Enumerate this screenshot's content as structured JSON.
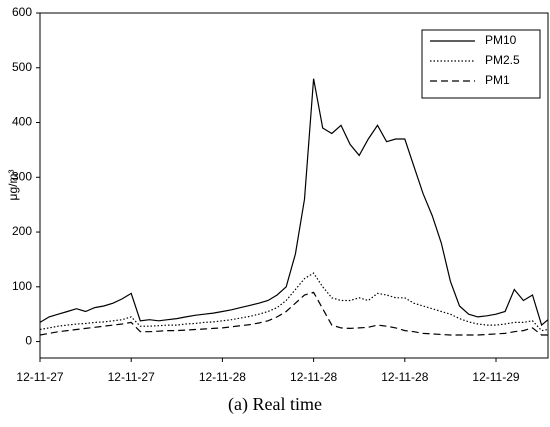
{
  "chart_data": {
    "type": "line",
    "caption": "(a) Real time",
    "ylabel": "μg/m³",
    "x": [
      0,
      0.1,
      0.2,
      0.3,
      0.4,
      0.5,
      0.6,
      0.7,
      0.8,
      0.9,
      1.0,
      1.1,
      1.2,
      1.3,
      1.4,
      1.5,
      1.6,
      1.7,
      1.8,
      1.9,
      2.0,
      2.1,
      2.2,
      2.3,
      2.4,
      2.5,
      2.6,
      2.7,
      2.8,
      2.9,
      3.0,
      3.1,
      3.2,
      3.3,
      3.4,
      3.5,
      3.6,
      3.7,
      3.8,
      3.9,
      4.0,
      4.1,
      4.2,
      4.3,
      4.4,
      4.5,
      4.6,
      4.7,
      4.8,
      4.9,
      5.0,
      5.1,
      5.2,
      5.3,
      5.4,
      5.5,
      5.57
    ],
    "series": [
      {
        "name": "PM10",
        "color": "#000000",
        "line_style": "solid",
        "values": [
          35,
          45,
          50,
          55,
          60,
          55,
          62,
          65,
          70,
          78,
          88,
          38,
          40,
          38,
          40,
          42,
          45,
          48,
          50,
          52,
          55,
          58,
          62,
          66,
          70,
          75,
          85,
          100,
          160,
          260,
          480,
          390,
          380,
          395,
          360,
          340,
          370,
          395,
          365,
          370,
          370,
          320,
          270,
          230,
          180,
          110,
          65,
          50,
          45,
          47,
          50,
          55,
          95,
          75,
          85,
          30,
          40
        ]
      },
      {
        "name": "PM2.5",
        "color": "#000000",
        "line_style": "dotted",
        "values": [
          22,
          25,
          28,
          30,
          32,
          33,
          35,
          36,
          38,
          40,
          45,
          28,
          28,
          29,
          30,
          30,
          32,
          33,
          35,
          36,
          38,
          40,
          43,
          46,
          50,
          55,
          62,
          75,
          95,
          115,
          125,
          100,
          80,
          75,
          75,
          80,
          75,
          88,
          85,
          80,
          80,
          70,
          65,
          60,
          55,
          50,
          42,
          36,
          32,
          30,
          30,
          32,
          35,
          35,
          38,
          20,
          22
        ]
      },
      {
        "name": "PM1",
        "color": "#000000",
        "line_style": "dashed",
        "values": [
          12,
          15,
          18,
          20,
          22,
          24,
          26,
          28,
          30,
          32,
          35,
          18,
          18,
          19,
          20,
          20,
          21,
          22,
          23,
          24,
          25,
          27,
          29,
          31,
          34,
          38,
          45,
          55,
          70,
          85,
          90,
          60,
          30,
          25,
          24,
          25,
          26,
          30,
          28,
          25,
          20,
          18,
          15,
          14,
          13,
          12,
          12,
          12,
          12,
          13,
          14,
          15,
          18,
          20,
          25,
          12,
          12
        ]
      }
    ],
    "xlim": [
      0,
      5.57
    ],
    "xticks": [
      {
        "value": 0,
        "label": "12-11-27"
      },
      {
        "value": 1,
        "label": "12-11-27"
      },
      {
        "value": 2,
        "label": "12-11-28"
      },
      {
        "value": 3,
        "label": "12-11-28"
      },
      {
        "value": 4,
        "label": "12-11-28"
      },
      {
        "value": 5,
        "label": "12-11-29"
      }
    ],
    "ylim": [
      -30,
      600
    ],
    "yticks": [
      0,
      100,
      200,
      300,
      400,
      500,
      600
    ],
    "legend": "upper right"
  }
}
